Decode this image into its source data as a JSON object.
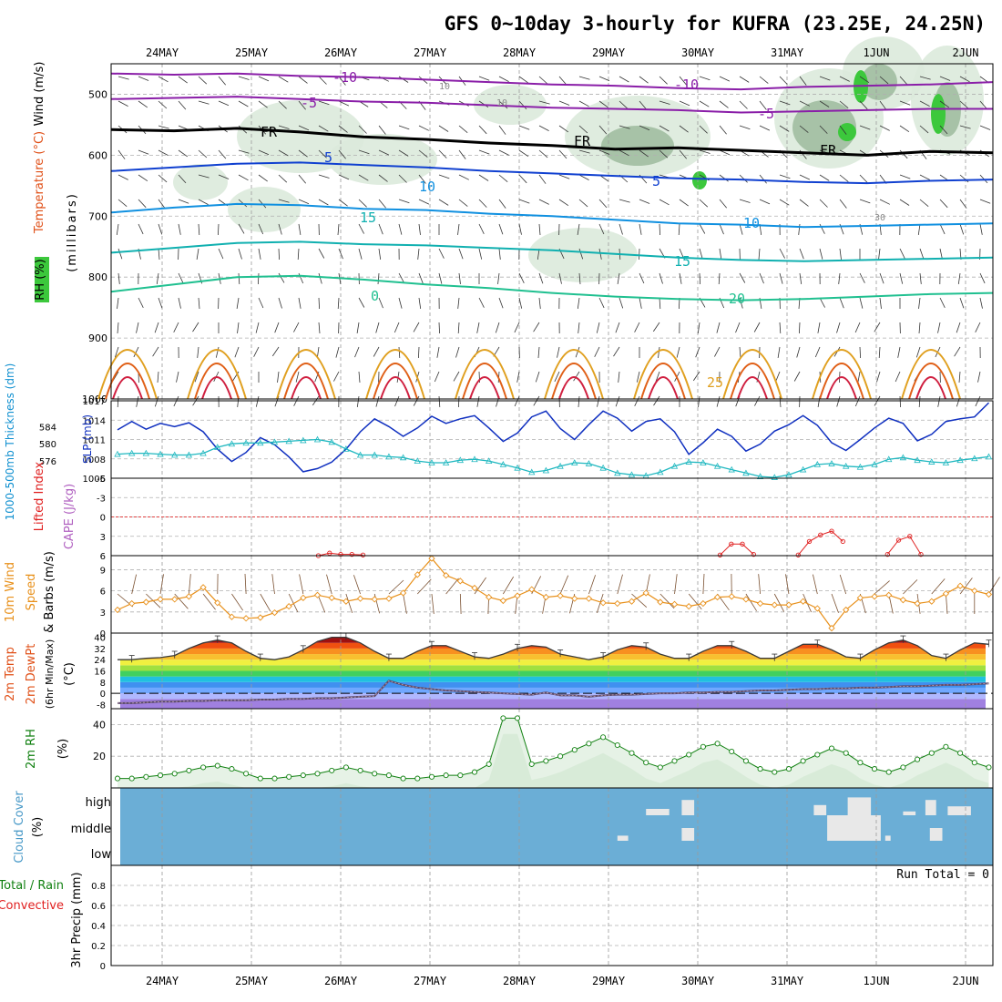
{
  "chart_data": [
    {
      "type": "line",
      "panel": "pressure-cross-section",
      "title": "GFS 0~10day 3-hourly for KUFRA (23.25E, 24.25N)",
      "date_labels": [
        "24MAY",
        "25MAY",
        "26MAY",
        "27MAY",
        "28MAY",
        "29MAY",
        "30MAY",
        "31MAY",
        "1JUN",
        "2JUN"
      ],
      "ylabel": "(millibars)",
      "yticks": [
        500,
        600,
        700,
        800,
        900,
        1000
      ],
      "ylim": [
        1000,
        450
      ],
      "legend_labels": [
        "Wind (m/s)",
        "Temperature (°C)",
        "RH (%)"
      ],
      "isotherm_labels": [
        "-10",
        "-10",
        "-5",
        "-5",
        "FR",
        "FR",
        "FR",
        "5",
        "5",
        "10",
        "10",
        "15",
        "15",
        "20",
        "25",
        "0",
        "10",
        "10",
        "30"
      ],
      "isotherms": [
        {
          "temp": -10,
          "color": "#8a1ea8",
          "pressures": [
            466,
            468,
            466,
            470,
            472,
            476,
            480,
            484,
            486,
            490,
            492,
            488,
            486,
            484,
            480
          ]
        },
        {
          "temp": -5,
          "color": "#8a1ea8",
          "pressures": [
            508,
            506,
            504,
            508,
            512,
            514,
            518,
            522,
            524,
            526,
            530,
            528,
            526,
            524,
            524
          ]
        },
        {
          "temp": 0,
          "color": "#000000",
          "pressures": [
            558,
            560,
            556,
            562,
            570,
            574,
            580,
            584,
            590,
            588,
            592,
            596,
            600,
            594,
            596
          ]
        },
        {
          "temp": 5,
          "color": "#1040d0",
          "pressures": [
            626,
            620,
            614,
            612,
            616,
            620,
            626,
            630,
            634,
            638,
            640,
            644,
            646,
            642,
            640
          ]
        },
        {
          "temp": 10,
          "color": "#1090e0",
          "pressures": [
            694,
            686,
            680,
            682,
            688,
            690,
            696,
            700,
            706,
            712,
            714,
            718,
            716,
            714,
            712
          ]
        },
        {
          "temp": 15,
          "color": "#10b0b0",
          "pressures": [
            760,
            752,
            744,
            742,
            746,
            748,
            752,
            756,
            762,
            768,
            772,
            774,
            772,
            770,
            768
          ]
        },
        {
          "temp": 20,
          "color": "#20c090",
          "pressures": [
            824,
            812,
            800,
            798,
            804,
            812,
            818,
            826,
            832,
            836,
            838,
            836,
            832,
            828,
            826
          ]
        }
      ]
    },
    {
      "type": "line",
      "panel": "slp-thickness",
      "ylabel_left": "1000-500mb Thickness (dm)",
      "ylabel_right": "SLP (mb)",
      "thickness_ticks": [
        576,
        580,
        584
      ],
      "slp_ticks": [
        1005,
        1008,
        1011,
        1014,
        1017
      ],
      "series": [
        {
          "name": "SLP (mb)",
          "color": "#1030c0",
          "values": [
            1012.5,
            1013.8,
            1012.6,
            1013.5,
            1013,
            1013.6,
            1012.2,
            1009.5,
            1007.6,
            1009,
            1011.3,
            1010.2,
            1008.3,
            1006,
            1006.5,
            1007.5,
            1009.5,
            1012.2,
            1014.2,
            1013,
            1011.5,
            1012.8,
            1014.6,
            1013.5,
            1014.2,
            1014.7,
            1012.8,
            1010.7,
            1012,
            1014.5,
            1015.4,
            1012.7,
            1011,
            1013.3,
            1015.4,
            1014.3,
            1012.3,
            1013.8,
            1014.2,
            1012.2,
            1008.7,
            1010.5,
            1012.6,
            1011.5,
            1009.2,
            1010.3,
            1012.3,
            1013.3,
            1014.7,
            1013.2,
            1010.5,
            1009.3,
            1011,
            1012.8,
            1014.3,
            1013.5,
            1010.8,
            1011.8,
            1013.8,
            1014.2,
            1014.5,
            1016.7
          ]
        },
        {
          "name": "1000-500mb Thickness (dm)",
          "color": "#20b8c0",
          "values": [
            577.6,
            577.8,
            577.8,
            577.6,
            577.4,
            577.4,
            577.8,
            579.2,
            580.0,
            580.2,
            580.2,
            580.4,
            580.6,
            580.8,
            581.0,
            580.4,
            578.8,
            577.4,
            577.4,
            577.0,
            576.8,
            576.0,
            575.6,
            575.6,
            576.2,
            576.4,
            576.0,
            575.2,
            574.4,
            573.4,
            573.8,
            574.8,
            575.6,
            575.4,
            574.4,
            573.2,
            572.8,
            572.6,
            573.4,
            574.8,
            575.8,
            575.6,
            574.8,
            574.0,
            573.2,
            572.4,
            572.2,
            572.8,
            574.0,
            575.2,
            575.4,
            574.8,
            574.6,
            575.2,
            576.4,
            576.8,
            576.2,
            575.8,
            575.6,
            576.2,
            576.6,
            577.0
          ]
        }
      ]
    },
    {
      "type": "line",
      "panel": "lifted-index-cape",
      "ylabel_left": "Lifted Index",
      "ylabel_right": "CAPE (J/kg)",
      "yticks": [
        -6,
        -3,
        0,
        3,
        6
      ],
      "ylim": [
        -6,
        6
      ],
      "series": [
        {
          "name": "Lifted Index",
          "color": "#e02020",
          "x": [
            1.75,
            1.875,
            2.0,
            2.125,
            2.25,
            6.25,
            6.375,
            6.5,
            6.625,
            7.125,
            7.25,
            7.375,
            7.5,
            7.625,
            8.125,
            8.25,
            8.375,
            8.5
          ],
          "values": [
            6,
            5.6,
            5.8,
            5.8,
            5.9,
            5.9,
            4.2,
            4.2,
            5.8,
            5.9,
            3.8,
            2.8,
            2.2,
            3.8,
            5.8,
            3.6,
            3.0,
            5.8
          ]
        }
      ]
    },
    {
      "type": "line",
      "panel": "wind-10m",
      "ylabel_left": "10m Wind",
      "ylabel_mid": "Speed",
      "ylabel_right": "& Barbs (m/s)",
      "yticks": [
        0,
        3,
        6,
        9
      ],
      "ylim": [
        0,
        11
      ],
      "series": [
        {
          "name": "10m Wind Speed",
          "color": "#e8901a",
          "values": [
            3.3,
            4.2,
            4.4,
            4.8,
            4.8,
            5.2,
            6.5,
            4.3,
            2.3,
            2.1,
            2.2,
            2.9,
            3.8,
            5.0,
            5.4,
            5.0,
            4.5,
            4.9,
            4.8,
            4.9,
            5.7,
            8.3,
            10.6,
            8.2,
            7.4,
            6.4,
            5.1,
            4.6,
            5.3,
            6.2,
            5.1,
            5.3,
            4.9,
            4.9,
            4.3,
            4.2,
            4.5,
            5.7,
            4.4,
            4.1,
            3.8,
            4.2,
            5.1,
            5.2,
            4.8,
            4.2,
            4.0,
            4.0,
            4.5,
            3.5,
            0.7,
            3.3,
            5.0,
            5.2,
            5.4,
            4.7,
            4.2,
            4.5,
            5.6,
            6.7,
            6.0,
            5.5
          ]
        }
      ]
    },
    {
      "type": "area",
      "panel": "temp-2m",
      "ylabel": "2m Temp 2m DewPt (6hr Min/Max) (°C)",
      "ylabel_lines": [
        "2m Temp",
        "2m DewPt",
        "(6hr Min/Max)",
        "(°C)"
      ],
      "yticks": [
        -8,
        0,
        8,
        16,
        24,
        32,
        40
      ],
      "ylim": [
        -11,
        43
      ],
      "series": [
        {
          "name": "2m Temp",
          "color": "#404040",
          "values": [
            24,
            24,
            25,
            25.5,
            27,
            32,
            36,
            38,
            36,
            30,
            25,
            24,
            26,
            31,
            37,
            40,
            40,
            36,
            30,
            25,
            25,
            30,
            34,
            34,
            30,
            26,
            25,
            28,
            32,
            34,
            33,
            28,
            26,
            24,
            26,
            31,
            34,
            33,
            28,
            25,
            25,
            30,
            34,
            34,
            30,
            25,
            25,
            30,
            35,
            35,
            31,
            26,
            25,
            31,
            36,
            38,
            34,
            27,
            25,
            31,
            36,
            35
          ]
        },
        {
          "name": "2m DewPt",
          "color": "#707070",
          "values": [
            -7,
            -7,
            -6.5,
            -6,
            -6,
            -5.5,
            -5.5,
            -5,
            -5,
            -5,
            -4.5,
            -4.5,
            -4,
            -4,
            -3.5,
            -3.5,
            -3,
            -2.5,
            -2,
            9,
            6,
            4,
            3,
            2,
            1.5,
            1,
            0.5,
            0,
            -0.5,
            -1,
            0.5,
            -1.5,
            -1.5,
            -2.5,
            -1.5,
            -1,
            -1,
            -0.5,
            0,
            0,
            0.5,
            0.5,
            1,
            1,
            1.5,
            2,
            2,
            2.5,
            3,
            3,
            3.5,
            3.5,
            4,
            4,
            4.5,
            5,
            5,
            5.5,
            6,
            6,
            6.5,
            7
          ]
        }
      ]
    },
    {
      "type": "area",
      "panel": "rh-2m",
      "ylabel": "2m RH (%)",
      "yticks": [
        20,
        40
      ],
      "ylim": [
        0,
        50
      ],
      "series": [
        {
          "name": "2m RH",
          "color": "#108010",
          "values": [
            6,
            6,
            7,
            8,
            9,
            11,
            13,
            14,
            12,
            9,
            6,
            6,
            7,
            8,
            9,
            11,
            13,
            11,
            9,
            8,
            6,
            6,
            7,
            8,
            8,
            10,
            15,
            44,
            44,
            15,
            17,
            20,
            24,
            28,
            32,
            27,
            22,
            16,
            13,
            17,
            21,
            26,
            28,
            23,
            17,
            12,
            10,
            12,
            17,
            21,
            25,
            22,
            16,
            12,
            10,
            13,
            18,
            22,
            26,
            22,
            16,
            13
          ]
        }
      ]
    },
    {
      "type": "heatmap",
      "panel": "cloud-cover",
      "ylabel": "Cloud Cover (%)",
      "rows": [
        "high",
        "middle",
        "low"
      ],
      "clear_cells": [
        {
          "day": 5.1,
          "level": "middle",
          "width": 0.12,
          "height": 0.2
        },
        {
          "day": 5.42,
          "level": "high",
          "width": 0.26,
          "height": 0.25
        },
        {
          "day": 5.82,
          "level": "high",
          "width": 0.14,
          "height": 0.6
        },
        {
          "day": 5.82,
          "level": "middle",
          "width": 0.14,
          "height": 0.5
        },
        {
          "day": 7.3,
          "level": "high",
          "width": 0.14,
          "height": 0.4
        },
        {
          "day": 7.68,
          "level": "high",
          "width": 0.26,
          "height": 0.7
        },
        {
          "day": 7.45,
          "level": "middle",
          "width": 0.6,
          "height": 1.0
        },
        {
          "day": 8.3,
          "level": "high",
          "width": 0.14,
          "height": 0.15
        },
        {
          "day": 8.55,
          "level": "high",
          "width": 0.12,
          "height": 0.6
        },
        {
          "day": 8.8,
          "level": "high",
          "width": 0.26,
          "height": 0.35
        },
        {
          "day": 8.6,
          "level": "middle",
          "width": 0.14,
          "height": 0.5
        },
        {
          "day": 8.1,
          "level": "middle",
          "width": 0.06,
          "height": 0.2
        }
      ]
    },
    {
      "type": "bar",
      "panel": "precip-3hr",
      "ylabel_left": "Total / Rain",
      "ylabel_left2": "Convective",
      "ylabel_right": "3hr Precip (mm)",
      "yticks": [
        0,
        0.2,
        0.4,
        0.6,
        0.8
      ],
      "ylim": [
        0,
        1
      ],
      "run_total_label": "Run Total = 0",
      "values": []
    }
  ]
}
